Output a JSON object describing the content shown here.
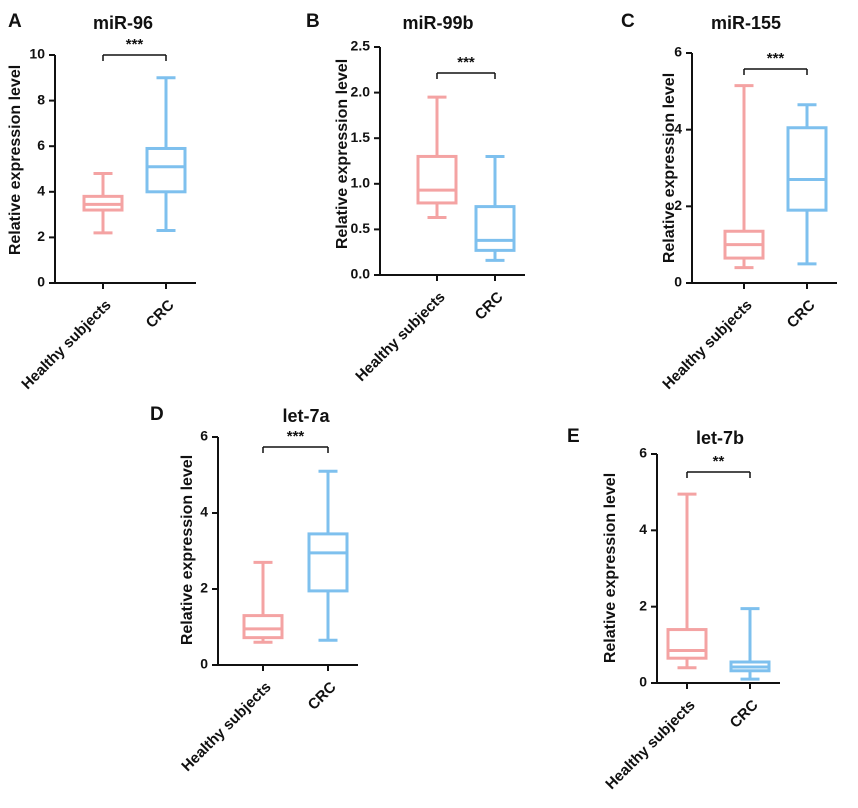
{
  "colors": {
    "healthy": "#F4A3A3",
    "crc": "#7EC0EE",
    "axis": "#111111"
  },
  "chart_data": [
    {
      "type": "box",
      "panel": "A",
      "title": "miR-96",
      "ylabel": "Relative expression level",
      "categories": [
        "Healthy subjects",
        "CRC"
      ],
      "ylim": [
        0,
        10
      ],
      "yticks": [
        "0",
        "2",
        "4",
        "6",
        "8",
        "10"
      ],
      "ytick_values": [
        0,
        2,
        4,
        6,
        8,
        10
      ],
      "boxes": [
        {
          "name": "Healthy subjects",
          "min": 2.2,
          "q1": 3.2,
          "median": 3.45,
          "q3": 3.8,
          "max": 4.8
        },
        {
          "name": "CRC",
          "min": 2.3,
          "q1": 4.0,
          "median": 5.1,
          "q3": 5.9,
          "max": 9.0
        }
      ],
      "significance": "***"
    },
    {
      "type": "box",
      "panel": "B",
      "title": "miR-99b",
      "ylabel": "Relative expression level",
      "categories": [
        "Healthy subjects",
        "CRC"
      ],
      "ylim": [
        0,
        2.5
      ],
      "yticks": [
        "0.0",
        "0.5",
        "1.0",
        "1.5",
        "2.0",
        "2.5"
      ],
      "ytick_values": [
        0,
        0.5,
        1.0,
        1.5,
        2.0,
        2.5
      ],
      "boxes": [
        {
          "name": "Healthy subjects",
          "min": 0.63,
          "q1": 0.79,
          "median": 0.93,
          "q3": 1.3,
          "max": 1.95
        },
        {
          "name": "CRC",
          "min": 0.16,
          "q1": 0.27,
          "median": 0.38,
          "q3": 0.75,
          "max": 1.3
        }
      ],
      "significance": "***"
    },
    {
      "type": "box",
      "panel": "C",
      "title": "miR-155",
      "ylabel": "Relative expression level",
      "categories": [
        "Healthy subjects",
        "CRC"
      ],
      "ylim": [
        0,
        6
      ],
      "yticks": [
        "0",
        "2",
        "4",
        "6"
      ],
      "ytick_values": [
        0,
        2,
        4,
        6
      ],
      "boxes": [
        {
          "name": "Healthy subjects",
          "min": 0.4,
          "q1": 0.65,
          "median": 1.0,
          "q3": 1.35,
          "max": 5.15
        },
        {
          "name": "CRC",
          "min": 0.5,
          "q1": 1.9,
          "median": 2.7,
          "q3": 4.05,
          "max": 4.65
        }
      ],
      "significance": "***"
    },
    {
      "type": "box",
      "panel": "D",
      "title": "let-7a",
      "ylabel": "Relative expression level",
      "categories": [
        "Healthy subjects",
        "CRC"
      ],
      "ylim": [
        0,
        6
      ],
      "yticks": [
        "0",
        "2",
        "4",
        "6"
      ],
      "ytick_values": [
        0,
        2,
        4,
        6
      ],
      "boxes": [
        {
          "name": "Healthy subjects",
          "min": 0.6,
          "q1": 0.72,
          "median": 0.95,
          "q3": 1.3,
          "max": 2.7
        },
        {
          "name": "CRC",
          "min": 0.65,
          "q1": 1.95,
          "median": 2.95,
          "q3": 3.45,
          "max": 5.1
        }
      ],
      "significance": "***"
    },
    {
      "type": "box",
      "panel": "E",
      "title": "let-7b",
      "ylabel": "Relative expression level",
      "categories": [
        "Healthy subjects",
        "CRC"
      ],
      "ylim": [
        0,
        6
      ],
      "yticks": [
        "0",
        "2",
        "4",
        "6"
      ],
      "ytick_values": [
        0,
        2,
        4,
        6
      ],
      "boxes": [
        {
          "name": "Healthy subjects",
          "min": 0.4,
          "q1": 0.65,
          "median": 0.85,
          "q3": 1.4,
          "max": 4.95
        },
        {
          "name": "CRC",
          "min": 0.1,
          "q1": 0.32,
          "median": 0.42,
          "q3": 0.55,
          "max": 1.95
        }
      ],
      "significance": "**"
    }
  ]
}
